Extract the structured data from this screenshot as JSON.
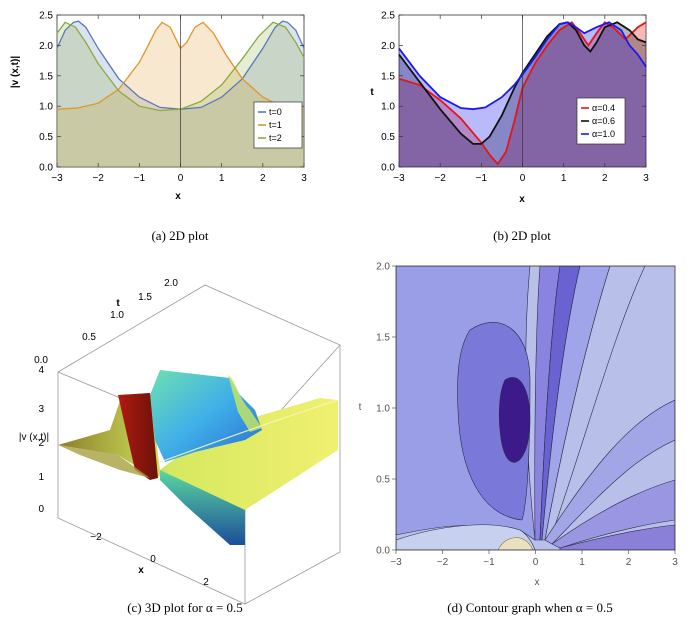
{
  "chart_data": [
    {
      "type": "area",
      "id": "a",
      "caption": "(a)  2D plot",
      "xlabel": "x",
      "ylabel": "|v (x,t)|",
      "xlim": [
        -3,
        3
      ],
      "ylim": [
        0,
        2.5
      ],
      "xticks": [
        "−3",
        "−2",
        "−1",
        "0",
        "1",
        "2",
        "3"
      ],
      "yticks": [
        "0.0",
        "0.5",
        "1.0",
        "1.5",
        "2.0",
        "2.5"
      ],
      "legend": {
        "position": "bottom-right"
      },
      "series": [
        {
          "name": "t=0",
          "color": "#5b79b8",
          "x": [
            -3,
            -2.8,
            -2.6,
            -2.48,
            -2.3,
            -2.0,
            -1.5,
            -1.0,
            -0.5,
            0.0,
            0.5,
            1.0,
            1.5,
            2.0,
            2.3,
            2.48,
            2.6,
            2.8,
            3.0
          ],
          "y": [
            1.95,
            2.25,
            2.38,
            2.4,
            2.3,
            1.95,
            1.45,
            1.15,
            0.98,
            0.95,
            0.98,
            1.15,
            1.45,
            1.95,
            2.3,
            2.4,
            2.38,
            2.25,
            1.95
          ]
        },
        {
          "name": "t=1",
          "color": "#e0962a",
          "x": [
            -3,
            -2.5,
            -2.0,
            -1.5,
            -1.0,
            -0.8,
            -0.6,
            -0.45,
            -0.25,
            -0.05,
            0.0,
            0.15,
            0.35,
            0.55,
            0.8,
            1.1,
            1.5,
            2.0,
            2.5,
            3.0
          ],
          "y": [
            0.95,
            0.97,
            1.05,
            1.28,
            1.72,
            1.98,
            2.25,
            2.38,
            2.3,
            2.02,
            1.95,
            2.05,
            2.3,
            2.38,
            2.2,
            1.85,
            1.45,
            1.15,
            0.98,
            0.95
          ]
        },
        {
          "name": "t=2",
          "color": "#8aab3c",
          "x": [
            -3,
            -2.8,
            -2.55,
            -2.3,
            -2.0,
            -1.5,
            -1.0,
            -0.5,
            0.0,
            0.5,
            1.0,
            1.5,
            1.9,
            2.25,
            2.55,
            2.8,
            3.0
          ],
          "y": [
            2.2,
            2.38,
            2.3,
            2.05,
            1.7,
            1.25,
            1.0,
            0.93,
            0.95,
            1.08,
            1.35,
            1.78,
            2.15,
            2.38,
            2.3,
            2.05,
            1.8
          ]
        }
      ]
    },
    {
      "type": "area",
      "id": "b",
      "caption": "(b)  2D plot",
      "xlabel": "x",
      "ylabel": "t",
      "xlim": [
        -3,
        3
      ],
      "ylim": [
        0,
        2.5
      ],
      "xticks": [
        "−3",
        "−2",
        "−1",
        "0",
        "1",
        "2",
        "3"
      ],
      "yticks": [
        "0.0",
        "0.5",
        "1.0",
        "1.5",
        "2.0",
        "2.5"
      ],
      "legend": {
        "position": "bottom-right"
      },
      "series": [
        {
          "name": "α=0.4",
          "color": "#e01818",
          "x": [
            -3,
            -2.5,
            -2.0,
            -1.5,
            -1.0,
            -0.8,
            -0.6,
            -0.4,
            -0.2,
            0.0,
            0.3,
            0.6,
            0.9,
            1.2,
            1.4,
            1.6,
            1.8,
            2.0,
            2.2,
            2.5,
            2.8,
            3.0
          ],
          "y": [
            1.45,
            1.35,
            1.1,
            0.8,
            0.4,
            0.2,
            0.05,
            0.25,
            0.75,
            1.3,
            1.7,
            2.0,
            2.25,
            2.38,
            2.2,
            2.0,
            2.2,
            2.38,
            2.3,
            2.1,
            2.3,
            2.38
          ]
        },
        {
          "name": "α=0.6",
          "color": "#111111",
          "x": [
            -3,
            -2.5,
            -2.0,
            -1.5,
            -1.2,
            -1.0,
            -0.8,
            -0.5,
            -0.2,
            0.0,
            0.3,
            0.6,
            0.9,
            1.1,
            1.3,
            1.5,
            1.65,
            1.8,
            2.0,
            2.3,
            2.6,
            2.8,
            3.0
          ],
          "y": [
            1.85,
            1.4,
            0.95,
            0.55,
            0.38,
            0.38,
            0.5,
            0.85,
            1.3,
            1.55,
            1.85,
            2.15,
            2.35,
            2.38,
            2.25,
            2.0,
            1.9,
            2.05,
            2.3,
            2.38,
            2.25,
            2.1,
            2.05
          ]
        },
        {
          "name": "α=1.0",
          "color": "#1a1af0",
          "x": [
            -3,
            -2.5,
            -2.0,
            -1.5,
            -1.2,
            -0.9,
            -0.5,
            -0.2,
            0.0,
            0.3,
            0.6,
            0.9,
            1.1,
            1.3,
            1.5,
            1.8,
            2.1,
            2.4,
            2.6,
            2.8,
            3.0
          ],
          "y": [
            1.95,
            1.5,
            1.15,
            0.97,
            0.95,
            0.98,
            1.15,
            1.35,
            1.52,
            1.8,
            2.1,
            2.35,
            2.38,
            2.3,
            2.2,
            2.3,
            2.38,
            2.25,
            2.0,
            1.85,
            1.65
          ]
        }
      ]
    },
    {
      "type": "surface3d",
      "id": "c",
      "caption": "(c)  3D plot for α = 0.5",
      "xlabel": "x",
      "ylabel": "t",
      "zlabel": "|v (x,t)|",
      "xticks": [
        "−2",
        "0",
        "2"
      ],
      "yticks": [
        "0.0",
        "0.5",
        "1.0",
        "1.5",
        "2.0"
      ],
      "zticks": [
        "0",
        "1",
        "2",
        "3",
        "4"
      ]
    },
    {
      "type": "contour",
      "id": "d",
      "caption": "(d)  Contour graph when α = 0.5",
      "xlabel": "x",
      "ylabel": "t",
      "xlim": [
        -3,
        3
      ],
      "ylim": [
        0,
        2
      ],
      "xticks": [
        "−3",
        "−2",
        "−1",
        "0",
        "1",
        "2",
        "3"
      ],
      "yticks": [
        "0.0",
        "0.5",
        "1.0",
        "1.5",
        "2.0"
      ]
    }
  ]
}
